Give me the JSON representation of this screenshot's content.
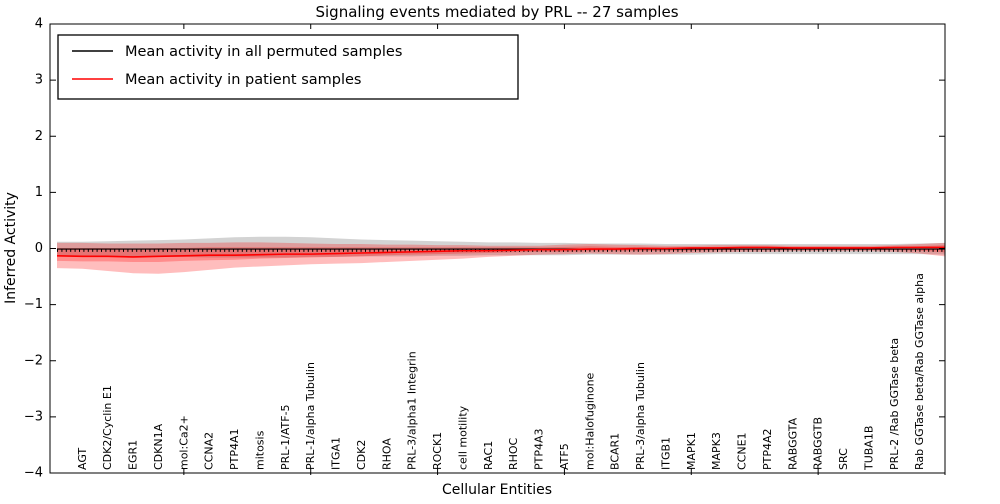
{
  "figure": {
    "title": "Signaling events mediated by PRL -- 27 samples",
    "xlabel": "Cellular Entities",
    "ylabel": "Inferred Activity"
  },
  "chart_data": {
    "type": "line",
    "title": "Signaling events mediated by PRL -- 27 samples",
    "xlabel": "Cellular Entities",
    "ylabel": "Inferred Activity",
    "ylim": [
      -4,
      4
    ],
    "ytick_values": [
      4,
      3,
      2,
      1,
      0,
      -1,
      -2,
      -3,
      -4
    ],
    "ytick_labels": [
      "4",
      "3",
      "2",
      "1",
      "0",
      "−1",
      "−2",
      "−3",
      "−4"
    ],
    "grid": false,
    "legend_position": "upper left",
    "n_points": 36,
    "categories_start_at_point": 1,
    "x_major_ticks_every": 5,
    "categories": [
      "AGT",
      "CDK2/Cyclin E1",
      "EGR1",
      "CDKN1A",
      "mol:Ca2+",
      "CCNA2",
      "PTP4A1",
      "mitosis",
      "PRL-1/ATF-5",
      "PRL-1/alpha Tubulin",
      "ITGA1",
      "CDK2",
      "RHOA",
      "PRL-3/alpha1 Integrin",
      "ROCK1",
      "cell motility",
      "RAC1",
      "RHOC",
      "PTP4A3",
      "ATF5",
      "mol:Halofuginone",
      "BCAR1",
      "PRL-3/alpha Tubulin",
      "ITGB1",
      "MAPK1",
      "MAPK3",
      "CCNE1",
      "PTP4A2",
      "RABGGTA",
      "RABGGTB",
      "SRC",
      "TUBA1B",
      "PRL-2 /Rab GGTase beta",
      "Rab GGTase beta/Rab GGTase alpha"
    ],
    "series": [
      {
        "name": "Mean activity in all permuted samples",
        "color": "#000000",
        "marker": "tick-dashes",
        "values": [
          -0.01,
          -0.01,
          -0.01,
          -0.01,
          -0.01,
          -0.01,
          -0.01,
          -0.01,
          -0.01,
          -0.01,
          -0.01,
          -0.01,
          -0.01,
          -0.01,
          -0.01,
          -0.01,
          -0.01,
          -0.01,
          -0.01,
          -0.01,
          -0.01,
          -0.01,
          -0.01,
          -0.01,
          -0.01,
          -0.01,
          -0.01,
          -0.01,
          -0.01,
          -0.01,
          -0.01,
          -0.01,
          -0.01,
          -0.01,
          -0.01,
          -0.01
        ]
      },
      {
        "name": "Mean activity in patient samples",
        "color": "#ff0000",
        "marker": "none",
        "values": [
          -0.13,
          -0.14,
          -0.14,
          -0.15,
          -0.14,
          -0.13,
          -0.12,
          -0.12,
          -0.11,
          -0.1,
          -0.1,
          -0.09,
          -0.08,
          -0.07,
          -0.06,
          -0.05,
          -0.04,
          -0.04,
          -0.03,
          -0.02,
          -0.02,
          -0.01,
          -0.01,
          0.0,
          0.0,
          0.01,
          0.01,
          0.02,
          0.02,
          0.01,
          0.01,
          0.01,
          0.01,
          0.02,
          0.02,
          0.02
        ]
      }
    ],
    "bands": [
      {
        "name": "permuted-samples-range",
        "color": "rgba(130,130,130,0.35)",
        "upper": [
          0.12,
          0.12,
          0.13,
          0.14,
          0.15,
          0.16,
          0.18,
          0.2,
          0.21,
          0.21,
          0.2,
          0.18,
          0.16,
          0.15,
          0.14,
          0.13,
          0.12,
          0.11,
          0.11,
          0.1,
          0.1,
          0.09,
          0.09,
          0.09,
          0.08,
          0.08,
          0.08,
          0.08,
          0.08,
          0.08,
          0.08,
          0.08,
          0.08,
          0.08,
          0.09,
          0.1
        ],
        "lower": [
          -0.14,
          -0.14,
          -0.14,
          -0.15,
          -0.15,
          -0.15,
          -0.16,
          -0.16,
          -0.16,
          -0.16,
          -0.15,
          -0.15,
          -0.14,
          -0.14,
          -0.14,
          -0.13,
          -0.13,
          -0.12,
          -0.12,
          -0.12,
          -0.12,
          -0.11,
          -0.11,
          -0.11,
          -0.11,
          -0.11,
          -0.1,
          -0.1,
          -0.1,
          -0.1,
          -0.1,
          -0.1,
          -0.1,
          -0.1,
          -0.1,
          -0.11
        ]
      },
      {
        "name": "patient-samples-range",
        "color": "rgba(255,0,0,0.26)",
        "upper": [
          0.1,
          0.1,
          0.09,
          0.09,
          0.09,
          0.1,
          0.1,
          0.11,
          0.11,
          0.1,
          0.09,
          0.08,
          0.08,
          0.07,
          0.07,
          0.06,
          0.06,
          0.05,
          0.05,
          0.05,
          0.07,
          0.08,
          0.07,
          0.06,
          0.05,
          0.05,
          0.06,
          0.06,
          0.06,
          0.05,
          0.05,
          0.05,
          0.05,
          0.06,
          0.08,
          0.1
        ],
        "lower": [
          -0.35,
          -0.36,
          -0.4,
          -0.44,
          -0.45,
          -0.42,
          -0.38,
          -0.34,
          -0.32,
          -0.3,
          -0.28,
          -0.27,
          -0.26,
          -0.24,
          -0.22,
          -0.2,
          -0.18,
          -0.15,
          -0.13,
          -0.11,
          -0.1,
          -0.09,
          -0.1,
          -0.11,
          -0.1,
          -0.08,
          -0.07,
          -0.06,
          -0.06,
          -0.05,
          -0.05,
          -0.05,
          -0.05,
          -0.06,
          -0.09,
          -0.14
        ]
      },
      {
        "name": "patient-samples-inner-range",
        "color": "rgba(255,0,0,0.26)",
        "upper": [
          0.01,
          0.01,
          0.01,
          0.0,
          0.01,
          0.01,
          0.02,
          0.02,
          0.02,
          0.02,
          0.02,
          0.02,
          0.02,
          0.02,
          0.02,
          0.02,
          0.02,
          0.02,
          0.02,
          0.02,
          0.03,
          0.04,
          0.03,
          0.03,
          0.02,
          0.02,
          0.03,
          0.03,
          0.03,
          0.03,
          0.03,
          0.03,
          0.03,
          0.03,
          0.04,
          0.06
        ],
        "lower": [
          -0.22,
          -0.23,
          -0.23,
          -0.24,
          -0.24,
          -0.22,
          -0.21,
          -0.2,
          -0.18,
          -0.17,
          -0.16,
          -0.15,
          -0.14,
          -0.12,
          -0.11,
          -0.1,
          -0.09,
          -0.08,
          -0.07,
          -0.06,
          -0.06,
          -0.05,
          -0.05,
          -0.05,
          -0.04,
          -0.04,
          -0.03,
          -0.03,
          -0.02,
          -0.02,
          -0.02,
          -0.02,
          -0.02,
          -0.03,
          -0.04,
          -0.07
        ]
      }
    ]
  }
}
